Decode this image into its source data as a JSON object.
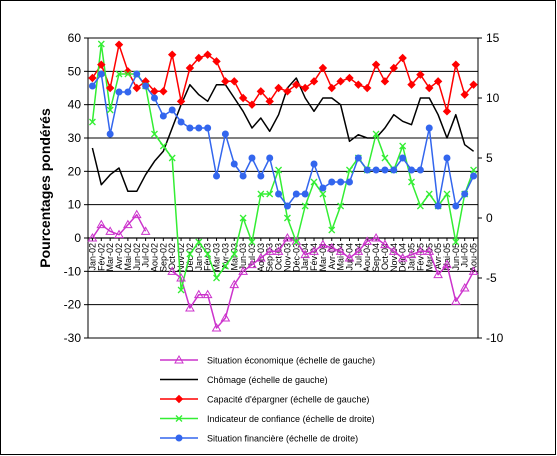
{
  "chart_data": {
    "type": "line",
    "ylabel": "Pourcentages pondérés",
    "left_axis": {
      "min": -30,
      "max": 60,
      "step": 10
    },
    "right_axis": {
      "min": -10,
      "max": 15,
      "step": 5
    },
    "grid": "horizontal",
    "legend_position": "bottom",
    "x": [
      "Jan-02",
      "Fév-02",
      "Mar-02",
      "Avr-02",
      "Mai-02",
      "Jun-02",
      "Jul-02",
      "Aou-02",
      "Sep-02",
      "Oct-02",
      "Nov-02",
      "Déc-02",
      "Jan-03",
      "Fév-03",
      "Mar-03",
      "Avr-03",
      "Mai-03",
      "Jun-03",
      "Jul-03",
      "Aou-03",
      "Sep-03",
      "Oct-03",
      "Nov-03",
      "Déc-03",
      "Jan-04",
      "Fév-04",
      "Mar-04",
      "Avr-04",
      "Mai-04",
      "Jun-04",
      "Jul-04",
      "Aou-04",
      "Sep-04",
      "Oct-04",
      "Nov-04",
      "Déc-04",
      "Jan-05",
      "Fév-05",
      "Mar-05",
      "Avr-05",
      "Mai-05",
      "Jun-05",
      "Jul-05",
      "Aou-05"
    ],
    "x_tick_labels": [
      "Jan-02",
      "Fév-02",
      "Mar-02",
      "Avr-02",
      "Mai-02",
      "Jun-02",
      "Jul-02",
      "Aou-02",
      "Sep-02",
      "Oct-02",
      "Nov-02",
      "Déc-02",
      "Jan-03",
      "Fév-03",
      "Mar-03",
      "Avr-03",
      "Mai-03",
      "Jun-03",
      "Jul-03",
      "Aou-03",
      "Sep-03",
      "Oct-03",
      "Nov-03",
      "Déc-03",
      "Jan-04",
      "Fév-04",
      "Mar-04",
      "Avr-04",
      "Mai-04",
      "Jun-04",
      "Jul-04",
      "Aou-04",
      "Sep-04",
      "Oct-04",
      "Nov-04",
      "Déc-04",
      "Jan-05",
      "Fév-05",
      "Mar-05",
      "Avr-05",
      "Mai-05",
      "Jun-05",
      "Jul-05",
      "Aou-05"
    ],
    "series": [
      {
        "name": "Situation économique (échelle de gauche)",
        "axis": "left",
        "color": "#cc33cc",
        "marker": "triangle",
        "values": [
          0,
          4,
          2,
          1,
          4,
          7,
          2,
          null,
          null,
          -10,
          -12,
          -21,
          -17,
          -17,
          -27,
          -24,
          -14,
          -10,
          -8,
          -6,
          -4,
          -4,
          0,
          -1,
          -5,
          -4,
          -2,
          -3,
          -4,
          -6,
          -4,
          -1,
          0,
          -2,
          -4,
          -6,
          -5,
          -4,
          -4,
          -11,
          -8,
          -19,
          -15,
          -10
        ]
      },
      {
        "name": "Chômage (échelle de gauche)",
        "axis": "left",
        "color": "#000000",
        "marker": "none",
        "values": [
          27,
          16,
          19,
          21,
          14,
          14,
          19,
          23,
          26,
          33,
          40,
          46,
          43,
          41,
          46,
          46,
          42,
          38,
          33,
          36,
          32,
          37,
          45,
          48,
          42,
          38,
          42,
          42,
          40,
          29,
          31,
          30,
          30,
          33,
          37,
          35,
          34,
          42,
          42,
          37,
          30,
          37,
          28,
          26
        ]
      },
      {
        "name": "Capacité d'épargner (échelle de gauche)",
        "axis": "left",
        "color": "#ff0000",
        "marker": "diamond",
        "values": [
          48,
          52,
          45,
          58,
          50,
          45,
          47,
          44,
          44,
          55,
          41,
          51,
          54,
          55,
          53,
          47,
          47,
          42,
          40,
          44,
          41,
          45,
          44,
          46,
          45,
          47,
          51,
          45,
          47,
          48,
          46,
          45,
          52,
          47,
          51,
          54,
          46,
          49,
          45,
          47,
          38,
          52,
          43,
          46
        ]
      },
      {
        "name": "Indicateur de confiance (échelle de droite)",
        "axis": "right",
        "color": "#33ee33",
        "marker": "x",
        "values": [
          8,
          14.5,
          9,
          12,
          12,
          12,
          11,
          7,
          6,
          5,
          -6,
          -3,
          -2,
          -3,
          -5,
          -4,
          -3,
          0,
          -2,
          2,
          2,
          4,
          0,
          -2,
          1,
          3,
          2,
          -1,
          1,
          4,
          5,
          4,
          7,
          5,
          4,
          6,
          3,
          1,
          2,
          1,
          2,
          -2,
          2,
          4
        ]
      },
      {
        "name": "Situation financière (échelle de droite)",
        "axis": "right",
        "color": "#3366ee",
        "marker": "circle",
        "values": [
          11,
          12,
          7,
          10.5,
          10.5,
          12,
          11,
          10,
          8.5,
          9,
          8,
          7.5,
          7.5,
          7.5,
          3.5,
          7,
          4.5,
          3.5,
          5,
          3.5,
          5,
          2,
          1,
          2,
          2,
          4.5,
          2.5,
          3,
          3,
          3,
          5,
          4,
          4,
          4,
          4,
          5,
          4,
          4,
          7.5,
          1,
          5,
          1,
          2,
          3.5
        ]
      }
    ]
  }
}
